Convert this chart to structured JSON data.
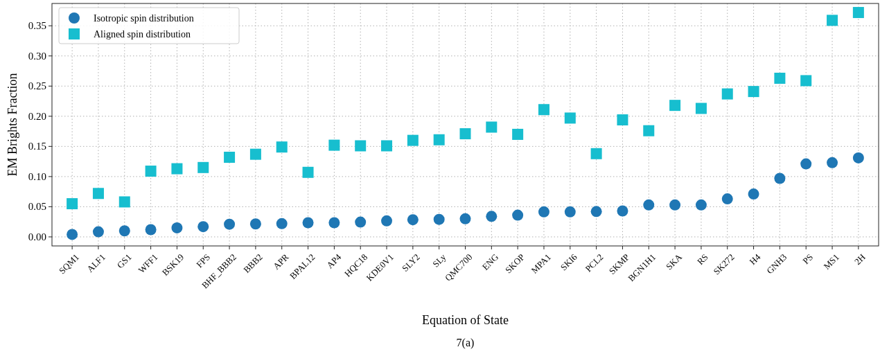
{
  "chart_data": {
    "type": "scatter",
    "xlabel": "Equation of State",
    "ylabel": "EM Brights Fraction",
    "annotations": [
      "7(a)"
    ],
    "categories": [
      "SQM1",
      "ALF1",
      "GS1",
      "WFF1",
      "BSK19",
      "FPS",
      "BHF_BBB2",
      "BBB2",
      "APR",
      "BPAL12",
      "AP4",
      "HQC18",
      "KDE0V1",
      "SLY2",
      "SLy",
      "QMC700",
      "ENG",
      "SKOP",
      "MPA1",
      "SKI6",
      "PCL2",
      "SKMP",
      "BGN1H1",
      "SKA",
      "RS",
      "SK272",
      "H4",
      "GNH3",
      "PS",
      "MS1",
      "2H"
    ],
    "series": [
      {
        "name": "Isotropic spin distribution",
        "color": "#1f77b4",
        "marker": "circle",
        "values": [
          0.004,
          0.0085,
          0.01,
          0.012,
          0.015,
          0.017,
          0.021,
          0.0215,
          0.022,
          0.0235,
          0.0235,
          0.0245,
          0.0265,
          0.0285,
          0.029,
          0.03,
          0.034,
          0.036,
          0.0415,
          0.0415,
          0.042,
          0.043,
          0.053,
          0.053,
          0.053,
          0.063,
          0.071,
          0.097,
          0.121,
          0.123,
          0.131
        ]
      },
      {
        "name": "Aligned spin distribution",
        "color": "#17becf",
        "marker": "square",
        "values": [
          0.055,
          0.072,
          0.058,
          0.109,
          0.113,
          0.115,
          0.132,
          0.137,
          0.149,
          0.107,
          0.152,
          0.151,
          0.151,
          0.16,
          0.161,
          0.171,
          0.182,
          0.17,
          0.211,
          0.197,
          0.138,
          0.194,
          0.176,
          0.218,
          0.213,
          0.237,
          0.241,
          0.263,
          0.259,
          0.359,
          0.372
        ]
      }
    ],
    "ylim": [
      -0.015,
      0.387
    ],
    "yticks": [
      {
        "value": 0,
        "label": "0.00"
      },
      {
        "value": 0.05,
        "label": "0.05"
      },
      {
        "value": 0.1,
        "label": "0.10"
      },
      {
        "value": 0.15,
        "label": "0.15"
      },
      {
        "value": 0.2,
        "label": "0.20"
      },
      {
        "value": 0.25,
        "label": "0.25"
      },
      {
        "value": 0.3,
        "label": "0.30"
      },
      {
        "value": 0.35,
        "label": "0.35"
      }
    ],
    "grid": true,
    "legend": "top left"
  }
}
